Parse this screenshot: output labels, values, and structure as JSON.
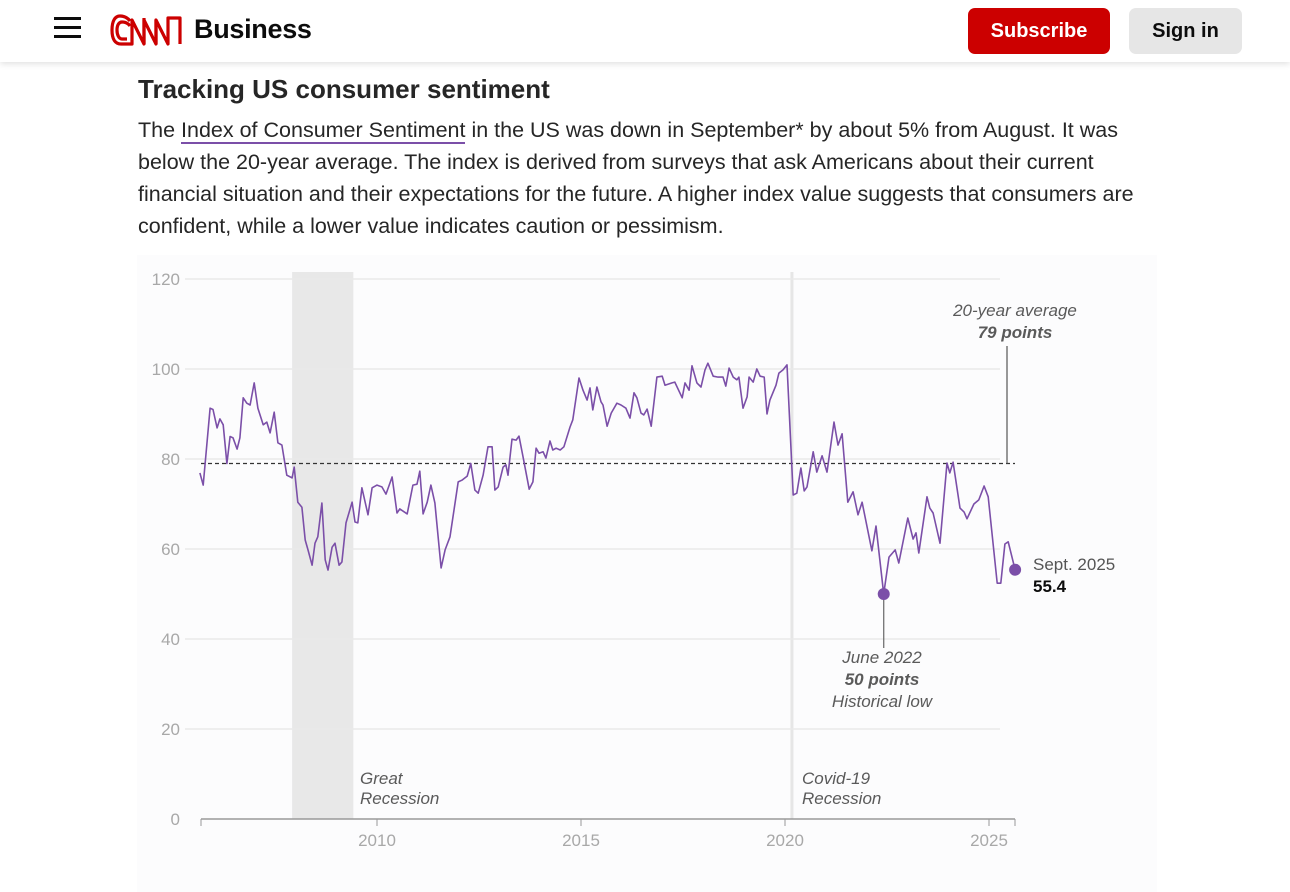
{
  "header": {
    "brand_logo": "CNN",
    "section": "Business",
    "subscribe_label": "Subscribe",
    "signin_label": "Sign in",
    "brand_color": "#cc0000"
  },
  "article": {
    "title": "Tracking US consumer sentiment",
    "desc_before": "The ",
    "desc_link": "Index of Consumer Sentiment",
    "desc_after": " in the US was down in September* by about 5% from August. It was below the 20-year average. The index is derived from surveys that ask Americans about their current financial situation and their expectations for the future. A higher index value suggests that consumers are confident, while a lower value indicates caution or pessimism."
  },
  "chart_data": {
    "type": "line",
    "title": "",
    "xlabel": "",
    "ylabel": "",
    "ylim": [
      0,
      120
    ],
    "xlim": [
      2005.66,
      2025.64
    ],
    "yticks": [
      "0",
      "20",
      "40",
      "60",
      "80",
      "100",
      "120"
    ],
    "xticks": [
      "2010",
      "2015",
      "2020",
      "2025"
    ],
    "grid": true,
    "line_color": "#7b4fa8",
    "series": [
      {
        "x": [
          2005.66,
          2005.74,
          2005.91,
          2005.98,
          2006.08,
          2006.15,
          2006.23,
          2006.32,
          2006.4,
          2006.47,
          2006.57,
          2006.64,
          2006.72,
          2006.81,
          2006.89,
          2006.99,
          2007.08,
          2007.21,
          2007.3,
          2007.38,
          2007.48,
          2007.57,
          2007.67,
          2007.79,
          2007.92,
          2007.97,
          2008.06,
          2008.16,
          2008.24,
          2008.31,
          2008.41,
          2008.48,
          2008.55,
          2008.65,
          2008.73,
          2008.8,
          2008.9,
          2008.97,
          2009.07,
          2009.14,
          2009.24,
          2009.39,
          2009.46,
          2009.53,
          2009.63,
          2009.78,
          2009.88,
          2010.0,
          2010.12,
          2010.22,
          2010.37,
          2010.49,
          2010.56,
          2010.74,
          2010.88,
          2010.98,
          2011.05,
          2011.13,
          2011.23,
          2011.32,
          2011.42,
          2011.57,
          2011.67,
          2011.79,
          2011.99,
          2012.08,
          2012.21,
          2012.3,
          2012.4,
          2012.48,
          2012.6,
          2012.72,
          2012.82,
          2012.89,
          2012.97,
          2013.09,
          2013.16,
          2013.21,
          2013.31,
          2013.41,
          2013.48,
          2013.58,
          2013.73,
          2013.82,
          2013.9,
          2013.97,
          2014.07,
          2014.14,
          2014.24,
          2014.31,
          2014.39,
          2014.49,
          2014.58,
          2014.73,
          2014.8,
          2014.95,
          2015.05,
          2015.15,
          2015.22,
          2015.29,
          2015.39,
          2015.49,
          2015.54,
          2015.64,
          2015.74,
          2015.88,
          2015.98,
          2016.1,
          2016.2,
          2016.3,
          2016.37,
          2016.47,
          2016.54,
          2016.62,
          2016.72,
          2016.86,
          2016.99,
          2017.06,
          2017.23,
          2017.3,
          2017.48,
          2017.55,
          2017.65,
          2017.72,
          2017.84,
          2017.94,
          2018.04,
          2018.11,
          2018.24,
          2018.36,
          2018.48,
          2018.55,
          2018.63,
          2018.73,
          2018.82,
          2018.87,
          2018.97,
          2019.07,
          2019.12,
          2019.22,
          2019.31,
          2019.39,
          2019.49,
          2019.56,
          2019.63,
          2019.78,
          2019.85,
          2019.95,
          2020.05,
          2020.2,
          2020.29,
          2020.39,
          2020.47,
          2020.54,
          2020.69,
          2020.78,
          2020.91,
          2021.03,
          2021.2,
          2021.3,
          2021.4,
          2021.54,
          2021.67,
          2021.79,
          2021.89,
          2022.13,
          2022.23,
          2022.42,
          2022.55,
          2022.7,
          2022.79,
          2023.01,
          2023.14,
          2023.21,
          2023.28,
          2023.48,
          2023.55,
          2023.63,
          2023.8,
          2023.97,
          2024.04,
          2024.12,
          2024.29,
          2024.39,
          2024.46,
          2024.63,
          2024.75,
          2024.88,
          2024.98,
          2025.2,
          2025.29,
          2025.39,
          2025.47,
          2025.64
        ],
        "y": [
          76.9,
          74.2,
          91.3,
          91,
          86.9,
          88.9,
          87.6,
          79,
          85,
          84.7,
          82.2,
          84.7,
          93.6,
          92.4,
          92,
          96.9,
          91.3,
          87.6,
          88.2,
          85.8,
          90.4,
          83.6,
          83.1,
          76.4,
          75.8,
          78.2,
          70.4,
          69.3,
          62,
          59.8,
          56.4,
          61.3,
          62.7,
          70.2,
          57.6,
          55.3,
          60.4,
          61.3,
          56.4,
          57.1,
          65.8,
          70.4,
          66,
          65.8,
          73.6,
          67.6,
          73.6,
          74.2,
          73.8,
          72.2,
          76,
          68,
          68.9,
          67.8,
          74.2,
          74.4,
          77.3,
          67.8,
          70.4,
          74.2,
          70.2,
          55.8,
          59.8,
          62.7,
          74.9,
          75.3,
          76.2,
          79,
          73.1,
          72.4,
          76.4,
          82.7,
          82.7,
          73.1,
          73.8,
          78.2,
          78.7,
          76.4,
          84.4,
          84.2,
          85.1,
          80.4,
          73.3,
          74.9,
          82.4,
          81.3,
          81.6,
          80.2,
          84,
          82,
          82.4,
          82,
          82.7,
          87.1,
          88.7,
          98,
          95.3,
          93.1,
          95.8,
          90.9,
          96,
          92.7,
          92,
          87.3,
          90.2,
          92.4,
          92,
          91.3,
          89.1,
          94.7,
          93.6,
          90.2,
          89.8,
          91.1,
          87.3,
          98.2,
          98.4,
          96.4,
          96.9,
          97.1,
          93.6,
          96.9,
          95.3,
          100.7,
          96.9,
          96,
          99.8,
          101.3,
          98.4,
          98.2,
          98.2,
          96.2,
          100.2,
          98.2,
          97.6,
          98.2,
          91.3,
          93.8,
          98.2,
          97.1,
          100,
          98.4,
          98.2,
          90,
          93.1,
          96.4,
          99.1,
          99.8,
          100.9,
          72,
          72.4,
          78,
          72.9,
          73.8,
          81.6,
          77.1,
          80.7,
          77.1,
          88.2,
          83.1,
          85.6,
          70.4,
          72.7,
          67.6,
          70.4,
          59.6,
          65.1,
          50,
          58.2,
          59.8,
          56.9,
          66.9,
          62.2,
          63.6,
          59.1,
          71.6,
          69.1,
          68,
          61.3,
          79.1,
          76.9,
          79.3,
          69.1,
          68.2,
          66.7,
          70,
          70.9,
          74,
          71.6,
          52.4,
          52.4,
          61.1,
          61.6,
          55.4
        ]
      }
    ],
    "reference_line": {
      "value": 79,
      "label": "20-year average",
      "value_label": "79 points"
    },
    "shaded_periods": [
      {
        "start": 2007.92,
        "end": 2009.42,
        "label_line1": "Great",
        "label_line2": "Recession"
      }
    ],
    "event_lines": [
      {
        "x": 2020.17,
        "label_line1": "Covid-19",
        "label_line2": "Recession"
      }
    ],
    "annotations": {
      "low": {
        "x": 2022.42,
        "y": 50,
        "line1": "June 2022",
        "line2": "50 points",
        "line3": "Historical low"
      },
      "latest": {
        "x": 2025.64,
        "y": 55.4,
        "label": "Sept. 2025",
        "value": "55.4"
      }
    }
  }
}
